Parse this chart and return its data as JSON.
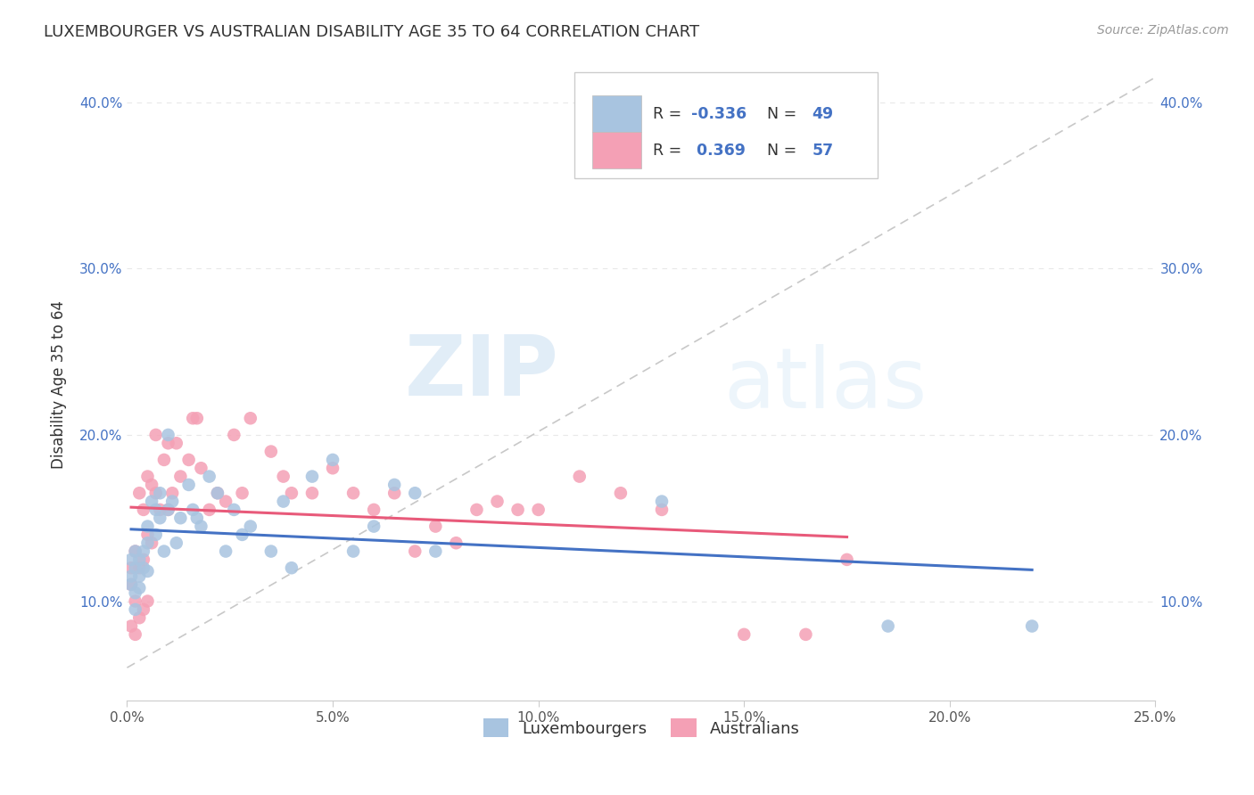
{
  "title": "LUXEMBOURGER VS AUSTRALIAN DISABILITY AGE 35 TO 64 CORRELATION CHART",
  "source": "Source: ZipAtlas.com",
  "ylabel": "Disability Age 35 to 64",
  "xlim": [
    0.0,
    0.25
  ],
  "ylim": [
    0.04,
    0.42
  ],
  "xticks": [
    0.0,
    0.05,
    0.1,
    0.15,
    0.2,
    0.25
  ],
  "yticks": [
    0.1,
    0.2,
    0.3,
    0.4
  ],
  "ytick_labels": [
    "10.0%",
    "20.0%",
    "30.0%",
    "40.0%"
  ],
  "xtick_labels": [
    "0.0%",
    "5.0%",
    "10.0%",
    "15.0%",
    "20.0%",
    "25.0%"
  ],
  "blue_color": "#a8c4e0",
  "pink_color": "#f4a0b5",
  "blue_line_color": "#4472c4",
  "pink_line_color": "#e85a7a",
  "dashed_line_color": "#c8c8c8",
  "watermark_zip": "ZIP",
  "watermark_atlas": "atlas",
  "blue_scatter_x": [
    0.001,
    0.001,
    0.001,
    0.002,
    0.002,
    0.002,
    0.002,
    0.003,
    0.003,
    0.003,
    0.004,
    0.004,
    0.005,
    0.005,
    0.005,
    0.006,
    0.007,
    0.007,
    0.008,
    0.008,
    0.009,
    0.01,
    0.01,
    0.011,
    0.012,
    0.013,
    0.015,
    0.016,
    0.017,
    0.018,
    0.02,
    0.022,
    0.024,
    0.026,
    0.028,
    0.03,
    0.035,
    0.038,
    0.04,
    0.045,
    0.05,
    0.055,
    0.06,
    0.065,
    0.07,
    0.075,
    0.13,
    0.185,
    0.22
  ],
  "blue_scatter_y": [
    0.125,
    0.115,
    0.11,
    0.13,
    0.12,
    0.105,
    0.095,
    0.125,
    0.115,
    0.108,
    0.13,
    0.12,
    0.145,
    0.135,
    0.118,
    0.16,
    0.155,
    0.14,
    0.165,
    0.15,
    0.13,
    0.2,
    0.155,
    0.16,
    0.135,
    0.15,
    0.17,
    0.155,
    0.15,
    0.145,
    0.175,
    0.165,
    0.13,
    0.155,
    0.14,
    0.145,
    0.13,
    0.16,
    0.12,
    0.175,
    0.185,
    0.13,
    0.145,
    0.17,
    0.165,
    0.13,
    0.16,
    0.085,
    0.085
  ],
  "pink_scatter_x": [
    0.001,
    0.001,
    0.001,
    0.002,
    0.002,
    0.002,
    0.003,
    0.003,
    0.003,
    0.004,
    0.004,
    0.004,
    0.005,
    0.005,
    0.005,
    0.006,
    0.006,
    0.007,
    0.007,
    0.008,
    0.009,
    0.01,
    0.01,
    0.011,
    0.012,
    0.013,
    0.015,
    0.016,
    0.017,
    0.018,
    0.02,
    0.022,
    0.024,
    0.026,
    0.028,
    0.03,
    0.035,
    0.038,
    0.04,
    0.045,
    0.05,
    0.055,
    0.06,
    0.065,
    0.07,
    0.075,
    0.08,
    0.085,
    0.09,
    0.095,
    0.1,
    0.11,
    0.12,
    0.13,
    0.15,
    0.165,
    0.175
  ],
  "pink_scatter_y": [
    0.12,
    0.11,
    0.085,
    0.13,
    0.1,
    0.08,
    0.165,
    0.12,
    0.09,
    0.155,
    0.125,
    0.095,
    0.175,
    0.14,
    0.1,
    0.17,
    0.135,
    0.2,
    0.165,
    0.155,
    0.185,
    0.195,
    0.155,
    0.165,
    0.195,
    0.175,
    0.185,
    0.21,
    0.21,
    0.18,
    0.155,
    0.165,
    0.16,
    0.2,
    0.165,
    0.21,
    0.19,
    0.175,
    0.165,
    0.165,
    0.18,
    0.165,
    0.155,
    0.165,
    0.13,
    0.145,
    0.135,
    0.155,
    0.16,
    0.155,
    0.155,
    0.175,
    0.165,
    0.155,
    0.08,
    0.08,
    0.125
  ],
  "background_color": "#ffffff",
  "grid_color": "#e8e8e8"
}
